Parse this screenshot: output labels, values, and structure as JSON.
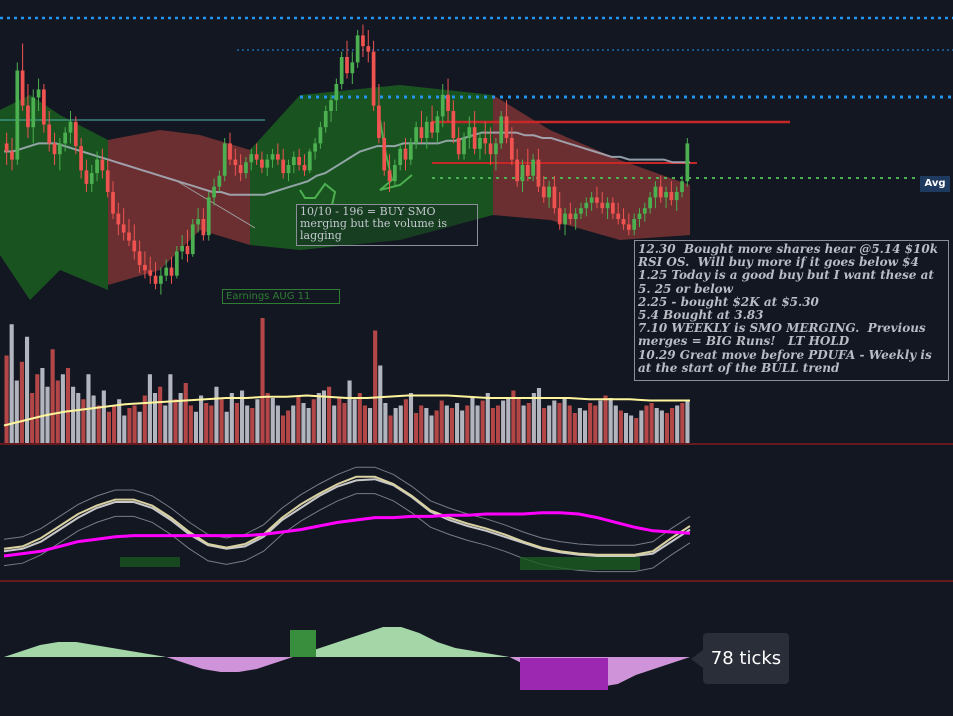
{
  "colors": {
    "background": "#131722",
    "candle_up": "#4caf50",
    "candle_down": "#ef5350",
    "candle_neutral": "#c4b07a",
    "cloud_green": "#1b5e20",
    "cloud_red": "#7b3434",
    "ma_line": "#a8b4c0",
    "volume_gray": "#b2b5be",
    "volume_red": "#b34747",
    "volume_ma": "#fff59d",
    "osc_fast": "#d9d2a0",
    "osc_slow": "#c8c8c8",
    "osc_signal": "#ff00ff",
    "hist_pos": "#a5d6a7",
    "hist_pos_strong": "#388e3c",
    "hist_neg": "#ce93d8",
    "hist_neg_strong": "#9c27b0",
    "level_blue": "#2196f3",
    "level_red": "#c62828",
    "level_green": "#4caf50",
    "pane_separator": "#b71c1c"
  },
  "annotations": {
    "buy_note": "10/10 - 196 = BUY  SMO merging but the volume is lagging",
    "earnings": "Earnings AUG 11",
    "journal": [
      "12.30  Bought more shares hear @5.14 $10k RSI OS.  Will buy more if it goes below $4",
      "1.25 Today is a good buy but I want these at 5. 25 or below",
      "2.25 - bought $2K at $5.30",
      "5.4 Bought at 3.83",
      "7.10 WEEKLY is SMO MERGING.  Previous merges = BIG Runs!   LT HOLD",
      "10.29 Great move before PDUFA - Weekly is at the start of the BULL trend"
    ]
  },
  "price_tag": "Avg",
  "ticks_label": "78 ticks",
  "chart_data": {
    "type": "candlestick",
    "title": "",
    "xlabel": "",
    "ylabel": "",
    "ylim": [
      0,
      100
    ],
    "candles": [
      [
        58,
        62,
        50,
        55
      ],
      [
        55,
        60,
        48,
        52
      ],
      [
        52,
        88,
        50,
        85
      ],
      [
        85,
        95,
        70,
        72
      ],
      [
        72,
        80,
        60,
        64
      ],
      [
        64,
        78,
        58,
        75
      ],
      [
        75,
        82,
        70,
        78
      ],
      [
        78,
        80,
        62,
        65
      ],
      [
        65,
        70,
        55,
        58
      ],
      [
        58,
        62,
        50,
        54
      ],
      [
        54,
        60,
        48,
        58
      ],
      [
        58,
        64,
        55,
        62
      ],
      [
        62,
        70,
        58,
        66
      ],
      [
        66,
        68,
        54,
        57
      ],
      [
        57,
        60,
        45,
        48
      ],
      [
        48,
        52,
        40,
        43
      ],
      [
        43,
        50,
        40,
        47
      ],
      [
        47,
        55,
        44,
        52
      ],
      [
        52,
        56,
        45,
        48
      ],
      [
        48,
        52,
        38,
        40
      ],
      [
        40,
        44,
        30,
        32
      ],
      [
        32,
        36,
        24,
        28
      ],
      [
        28,
        34,
        22,
        25
      ],
      [
        25,
        30,
        20,
        22
      ],
      [
        22,
        28,
        15,
        18
      ],
      [
        18,
        22,
        10,
        13
      ],
      [
        13,
        18,
        8,
        11
      ],
      [
        11,
        16,
        6,
        9
      ],
      [
        9,
        14,
        4,
        6
      ],
      [
        6,
        12,
        2,
        9
      ],
      [
        9,
        15,
        7,
        12
      ],
      [
        12,
        16,
        6,
        9
      ],
      [
        9,
        20,
        8,
        18
      ],
      [
        18,
        24,
        15,
        20
      ],
      [
        20,
        26,
        14,
        17
      ],
      [
        17,
        30,
        16,
        28
      ],
      [
        28,
        34,
        25,
        30
      ],
      [
        30,
        34,
        22,
        24
      ],
      [
        24,
        40,
        22,
        38
      ],
      [
        38,
        45,
        35,
        42
      ],
      [
        42,
        48,
        40,
        46
      ],
      [
        46,
        60,
        44,
        58
      ],
      [
        58,
        62,
        50,
        52
      ],
      [
        52,
        56,
        46,
        50
      ],
      [
        50,
        54,
        44,
        47
      ],
      [
        47,
        53,
        45,
        51
      ],
      [
        51,
        56,
        48,
        54
      ],
      [
        54,
        58,
        50,
        52
      ],
      [
        52,
        55,
        47,
        49
      ],
      [
        49,
        54,
        46,
        52
      ],
      [
        52,
        56,
        49,
        54
      ],
      [
        54,
        58,
        50,
        52
      ],
      [
        52,
        56,
        45,
        47
      ],
      [
        47,
        52,
        44,
        50
      ],
      [
        50,
        55,
        47,
        53
      ],
      [
        53,
        56,
        48,
        50
      ],
      [
        50,
        54,
        46,
        48
      ],
      [
        48,
        56,
        47,
        55
      ],
      [
        55,
        60,
        52,
        58
      ],
      [
        58,
        66,
        56,
        64
      ],
      [
        64,
        72,
        62,
        70
      ],
      [
        70,
        76,
        66,
        74
      ],
      [
        74,
        82,
        70,
        80
      ],
      [
        80,
        92,
        78,
        90
      ],
      [
        90,
        96,
        82,
        84
      ],
      [
        84,
        92,
        80,
        88
      ],
      [
        88,
        100,
        86,
        98
      ],
      [
        98,
        102,
        90,
        94
      ],
      [
        94,
        100,
        88,
        92
      ],
      [
        92,
        96,
        70,
        72
      ],
      [
        72,
        80,
        58,
        60
      ],
      [
        60,
        66,
        46,
        48
      ],
      [
        48,
        54,
        40,
        44
      ],
      [
        44,
        52,
        42,
        50
      ],
      [
        50,
        58,
        48,
        56
      ],
      [
        56,
        60,
        48,
        52
      ],
      [
        52,
        60,
        50,
        58
      ],
      [
        58,
        66,
        56,
        64
      ],
      [
        64,
        70,
        58,
        60
      ],
      [
        60,
        68,
        56,
        66
      ],
      [
        66,
        72,
        60,
        62
      ],
      [
        62,
        70,
        58,
        68
      ],
      [
        68,
        80,
        64,
        76
      ],
      [
        76,
        82,
        66,
        70
      ],
      [
        70,
        74,
        58,
        60
      ],
      [
        60,
        64,
        52,
        54
      ],
      [
        54,
        62,
        52,
        60
      ],
      [
        60,
        68,
        56,
        64
      ],
      [
        64,
        70,
        54,
        56
      ],
      [
        56,
        62,
        52,
        60
      ],
      [
        60,
        66,
        54,
        58
      ],
      [
        58,
        64,
        50,
        54
      ],
      [
        54,
        60,
        48,
        58
      ],
      [
        58,
        70,
        56,
        68
      ],
      [
        68,
        74,
        58,
        60
      ],
      [
        60,
        64,
        50,
        52
      ],
      [
        52,
        56,
        42,
        44
      ],
      [
        44,
        52,
        40,
        50
      ],
      [
        50,
        56,
        44,
        46
      ],
      [
        46,
        54,
        44,
        52
      ],
      [
        52,
        56,
        40,
        42
      ],
      [
        42,
        46,
        36,
        38
      ],
      [
        38,
        44,
        34,
        42
      ],
      [
        42,
        46,
        32,
        34
      ],
      [
        34,
        40,
        26,
        28
      ],
      [
        28,
        34,
        24,
        32
      ],
      [
        32,
        36,
        28,
        30
      ],
      [
        30,
        34,
        26,
        32
      ],
      [
        32,
        36,
        30,
        34
      ],
      [
        34,
        38,
        31,
        36
      ],
      [
        36,
        40,
        33,
        38
      ],
      [
        38,
        42,
        34,
        36
      ],
      [
        36,
        40,
        32,
        34
      ],
      [
        34,
        38,
        30,
        36
      ],
      [
        36,
        38,
        30,
        32
      ],
      [
        32,
        36,
        28,
        30
      ],
      [
        30,
        34,
        26,
        28
      ],
      [
        28,
        32,
        24,
        26
      ],
      [
        26,
        32,
        24,
        30
      ],
      [
        30,
        34,
        27,
        32
      ],
      [
        32,
        36,
        29,
        34
      ],
      [
        34,
        40,
        32,
        38
      ],
      [
        38,
        44,
        34,
        42
      ],
      [
        42,
        46,
        36,
        38
      ],
      [
        38,
        42,
        34,
        40
      ],
      [
        40,
        44,
        35,
        37
      ],
      [
        37,
        42,
        33,
        40
      ],
      [
        40,
        46,
        38,
        44
      ],
      [
        44,
        60,
        42,
        58
      ]
    ],
    "moving_average": [
      55,
      55,
      56,
      57,
      58,
      58,
      58,
      57,
      56,
      55,
      54,
      53,
      52,
      51,
      50,
      49,
      48,
      47,
      46,
      45,
      44,
      43,
      42,
      41,
      40,
      40,
      39,
      39,
      39,
      39,
      39,
      40,
      41,
      42,
      43,
      44,
      46,
      47,
      49,
      51,
      53,
      55,
      56,
      57,
      57,
      57,
      58,
      58,
      58,
      58,
      58,
      59,
      59,
      60,
      61,
      62,
      62,
      62,
      62,
      62,
      61,
      61,
      60,
      60,
      59,
      58,
      57,
      56,
      55,
      54,
      53,
      53,
      52,
      52,
      52,
      52,
      52,
      51,
      51,
      51
    ],
    "volume": [
      70,
      95,
      50,
      65,
      85,
      40,
      55,
      60,
      45,
      75,
      50,
      55,
      60,
      45,
      40,
      35,
      55,
      38,
      30,
      42,
      25,
      30,
      35,
      22,
      28,
      30,
      25,
      38,
      55,
      40,
      45,
      30,
      55,
      35,
      40,
      48,
      30,
      25,
      38,
      32,
      30,
      45,
      35,
      25,
      40,
      32,
      42,
      30,
      28,
      35,
      100,
      40,
      36,
      30,
      22,
      26,
      30,
      38,
      32,
      28,
      35,
      40,
      42,
      45,
      30,
      36,
      32,
      50,
      35,
      40,
      30,
      28,
      90,
      62,
      32,
      22,
      28,
      30,
      35,
      40,
      24,
      30,
      28,
      22,
      26,
      34,
      30,
      28,
      32,
      26,
      30,
      36,
      30,
      34,
      40,
      28,
      30,
      34,
      36,
      42,
      36,
      30,
      32,
      40,
      44,
      28,
      30,
      34,
      32,
      36,
      30,
      24,
      28,
      26,
      32,
      30,
      34,
      38,
      36,
      30,
      26,
      24,
      22,
      20,
      26,
      30,
      32,
      28,
      26,
      24,
      28,
      30,
      32,
      34
    ],
    "volume_ma": [
      0.14,
      0.18,
      0.22,
      0.25,
      0.27,
      0.29,
      0.31,
      0.32,
      0.33,
      0.34,
      0.35,
      0.36,
      0.36,
      0.37,
      0.37,
      0.38,
      0.37,
      0.36,
      0.36,
      0.37,
      0.38,
      0.38,
      0.38,
      0.37,
      0.36,
      0.36,
      0.36,
      0.36,
      0.36,
      0.35,
      0.35,
      0.35,
      0.34,
      0.34,
      0.34
    ],
    "oscillator": {
      "fast": [
        26,
        28,
        35,
        45,
        55,
        62,
        67,
        67,
        62,
        52,
        40,
        30,
        27,
        30,
        38,
        52,
        63,
        72,
        80,
        86,
        86,
        80,
        70,
        58,
        52,
        47,
        43,
        38,
        32,
        27,
        24,
        22,
        21,
        21,
        21,
        24,
        35,
        45
      ],
      "slow": [
        24,
        26,
        32,
        42,
        52,
        60,
        65,
        65,
        60,
        50,
        38,
        29,
        26,
        28,
        36,
        50,
        60,
        70,
        78,
        83,
        84,
        79,
        69,
        57,
        50,
        45,
        41,
        36,
        31,
        26,
        23,
        21,
        20,
        20,
        20,
        22,
        32,
        42
      ],
      "signal": [
        20,
        22,
        24,
        28,
        32,
        34,
        36,
        37,
        37,
        37,
        37,
        37,
        37,
        37,
        38,
        40,
        42,
        45,
        48,
        50,
        52,
        52,
        53,
        53,
        54,
        54,
        55,
        55,
        55,
        56,
        56,
        55,
        52,
        48,
        44,
        41,
        40,
        39
      ]
    },
    "histogram": [
      0,
      0.2,
      0.4,
      0.5,
      0.5,
      0.4,
      0.3,
      0.2,
      0.1,
      0,
      -0.2,
      -0.4,
      -0.5,
      -0.5,
      -0.4,
      -0.2,
      0,
      0.2,
      0.4,
      0.6,
      0.8,
      1.0,
      1.0,
      0.8,
      0.5,
      0.3,
      0.2,
      0.1,
      0,
      -0.3,
      -0.6,
      -0.9,
      -1.0,
      -1.0,
      -0.9,
      -0.6,
      -0.4,
      -0.2,
      0
    ]
  }
}
